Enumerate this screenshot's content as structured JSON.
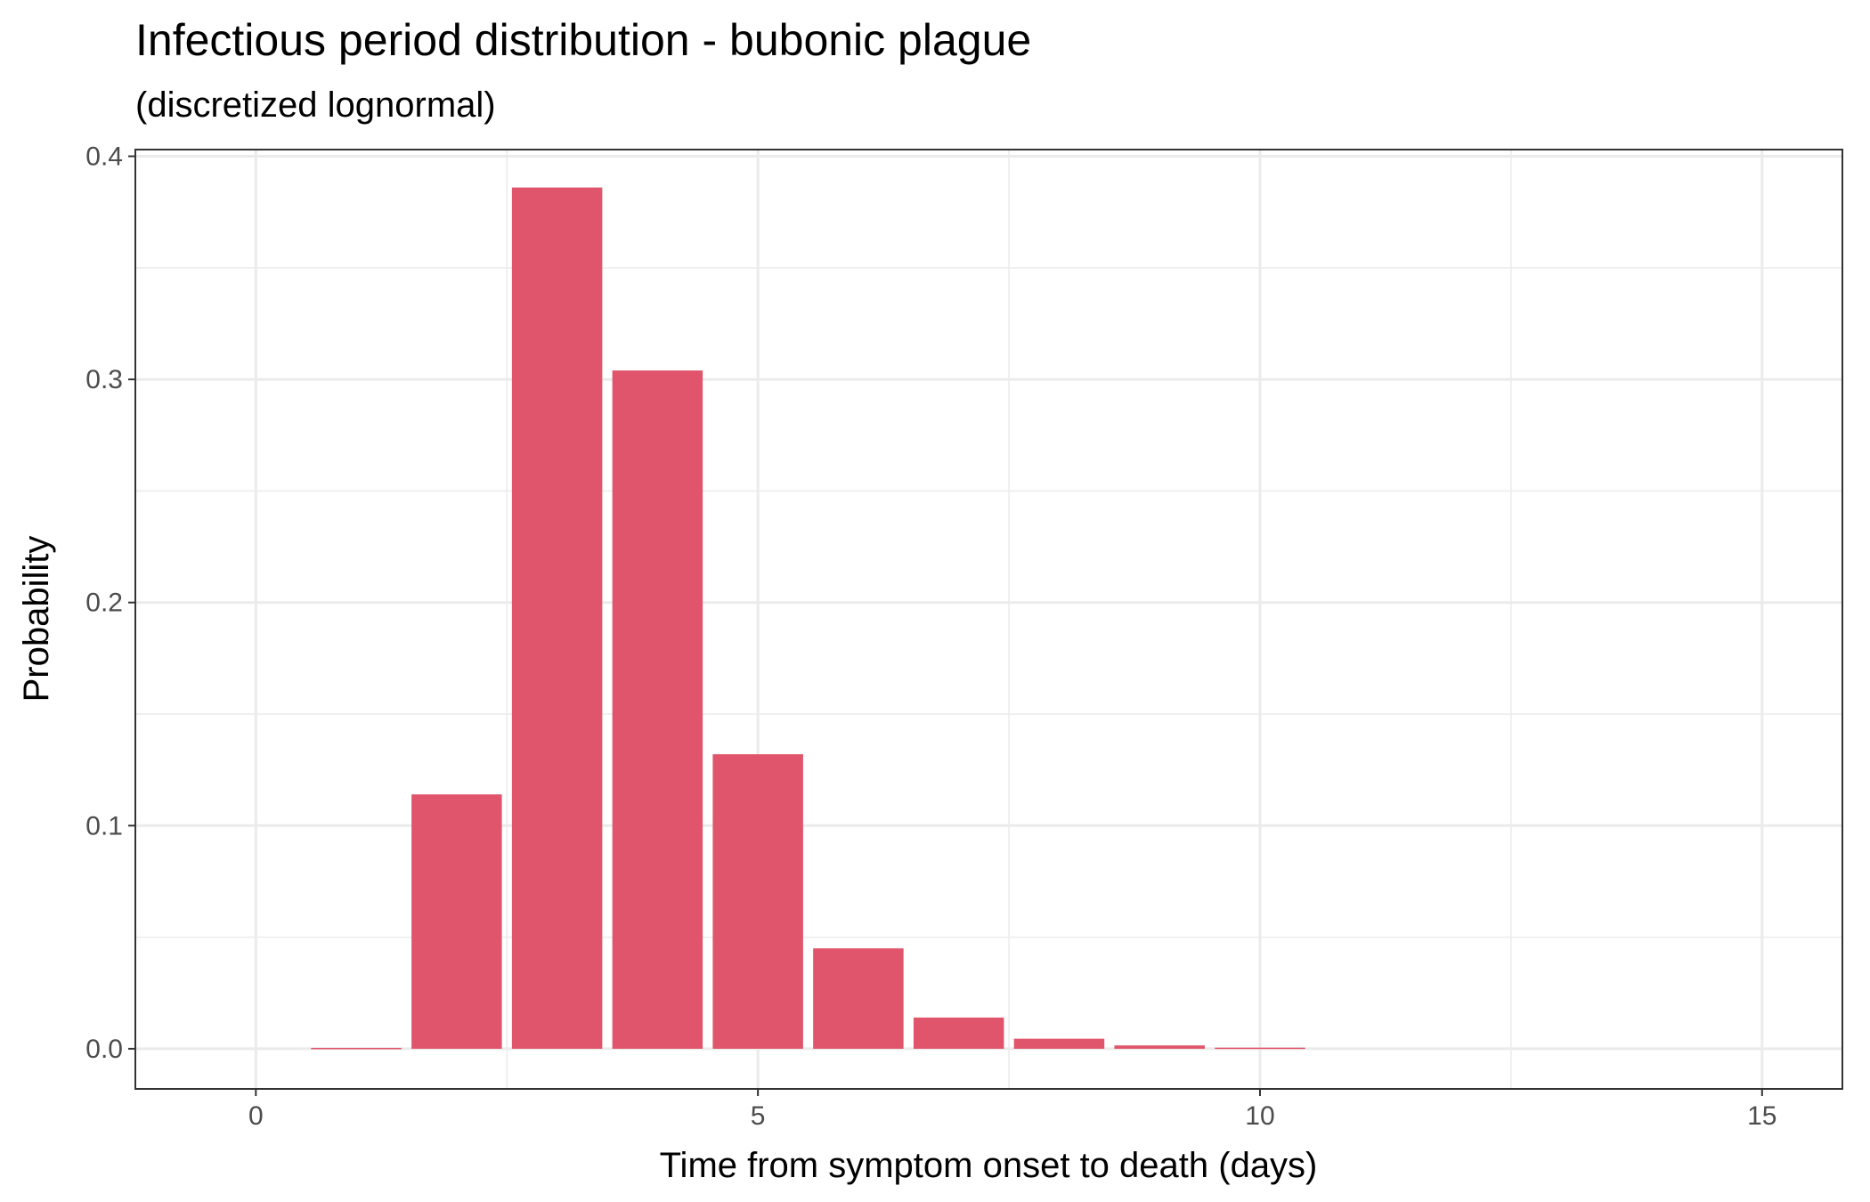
{
  "chart_data": {
    "type": "bar",
    "title": "Infectious period distribution - bubonic plague",
    "subtitle": "(discretized lognormal)",
    "xlabel": "Time from symptom onset to death (days)",
    "ylabel": "Probability",
    "x": [
      0,
      1,
      2,
      3,
      4,
      5,
      6,
      7,
      8,
      9,
      10,
      11,
      12,
      13,
      14,
      15
    ],
    "values": [
      0,
      0.0004,
      0.114,
      0.386,
      0.304,
      0.132,
      0.045,
      0.014,
      0.0045,
      0.0015,
      0.0005,
      0,
      0,
      0,
      0,
      0
    ],
    "xlim": [
      -1.2,
      15.8
    ],
    "ylim": [
      -0.018,
      0.403
    ],
    "x_ticks": [
      0,
      5,
      10,
      15
    ],
    "x_tick_labels": [
      "0",
      "5",
      "10",
      "15"
    ],
    "y_ticks": [
      0,
      0.1,
      0.2,
      0.3,
      0.4
    ],
    "y_tick_labels": [
      "0.0",
      "0.1",
      "0.2",
      "0.3",
      "0.4"
    ],
    "bar_color": "#E0556B",
    "grid": true,
    "legend": "none"
  }
}
